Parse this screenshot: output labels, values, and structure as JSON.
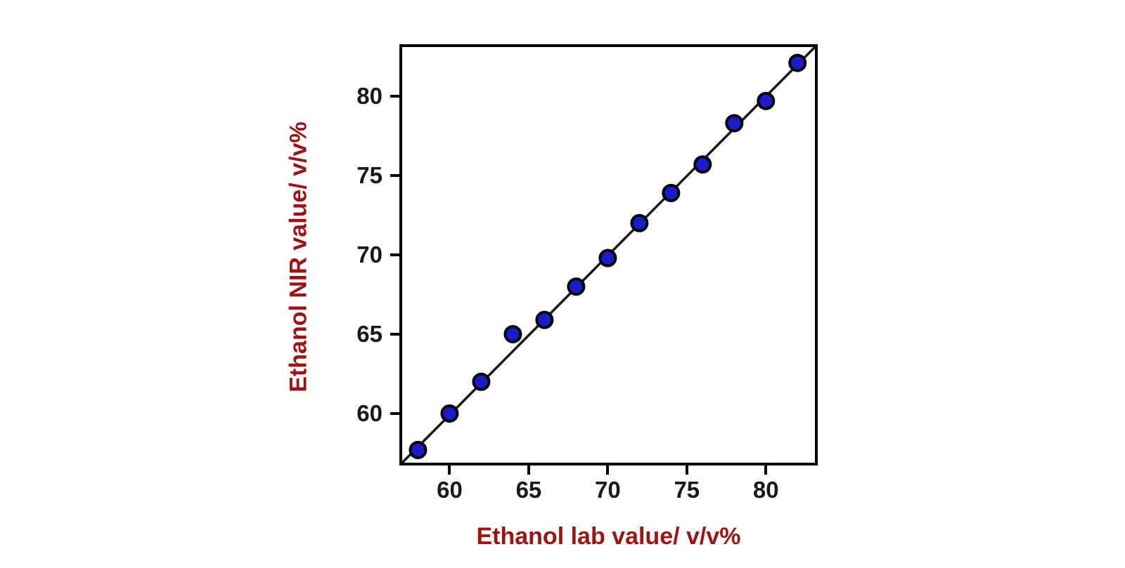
{
  "figure": {
    "background_color": "#ffffff"
  },
  "chart_data": {
    "type": "scatter",
    "title": "",
    "xlabel": "Ethanol lab value/ v/v%",
    "ylabel": "Ethanol NIR value/ v/v%",
    "xlim": [
      57,
      83.1
    ],
    "ylim": [
      56.9,
      83.1
    ],
    "xticks": [
      60,
      65,
      70,
      75,
      80
    ],
    "yticks": [
      60,
      65,
      70,
      75,
      80
    ],
    "grid": false,
    "legend": "none",
    "points": [
      [
        58,
        57.7
      ],
      [
        60,
        60.0
      ],
      [
        62,
        62.0
      ],
      [
        64,
        65.0
      ],
      [
        66,
        65.9
      ],
      [
        68,
        68.0
      ],
      [
        70,
        69.8
      ],
      [
        72,
        72.0
      ],
      [
        74,
        73.9
      ],
      [
        76,
        75.7
      ],
      [
        78,
        78.3
      ],
      [
        80,
        79.7
      ],
      [
        82,
        82.1
      ]
    ],
    "fit_line": {
      "x1": 57,
      "y1": 56.9,
      "x2": 83.1,
      "y2": 83.1
    },
    "marker_color": "#1c1ccd",
    "marker_outline_color": "#000000",
    "line_color": "#1a1a1a",
    "axis_color": "#000000",
    "axis_label_color": "#9e1414",
    "tick_label_color": "#1a1a1a"
  }
}
